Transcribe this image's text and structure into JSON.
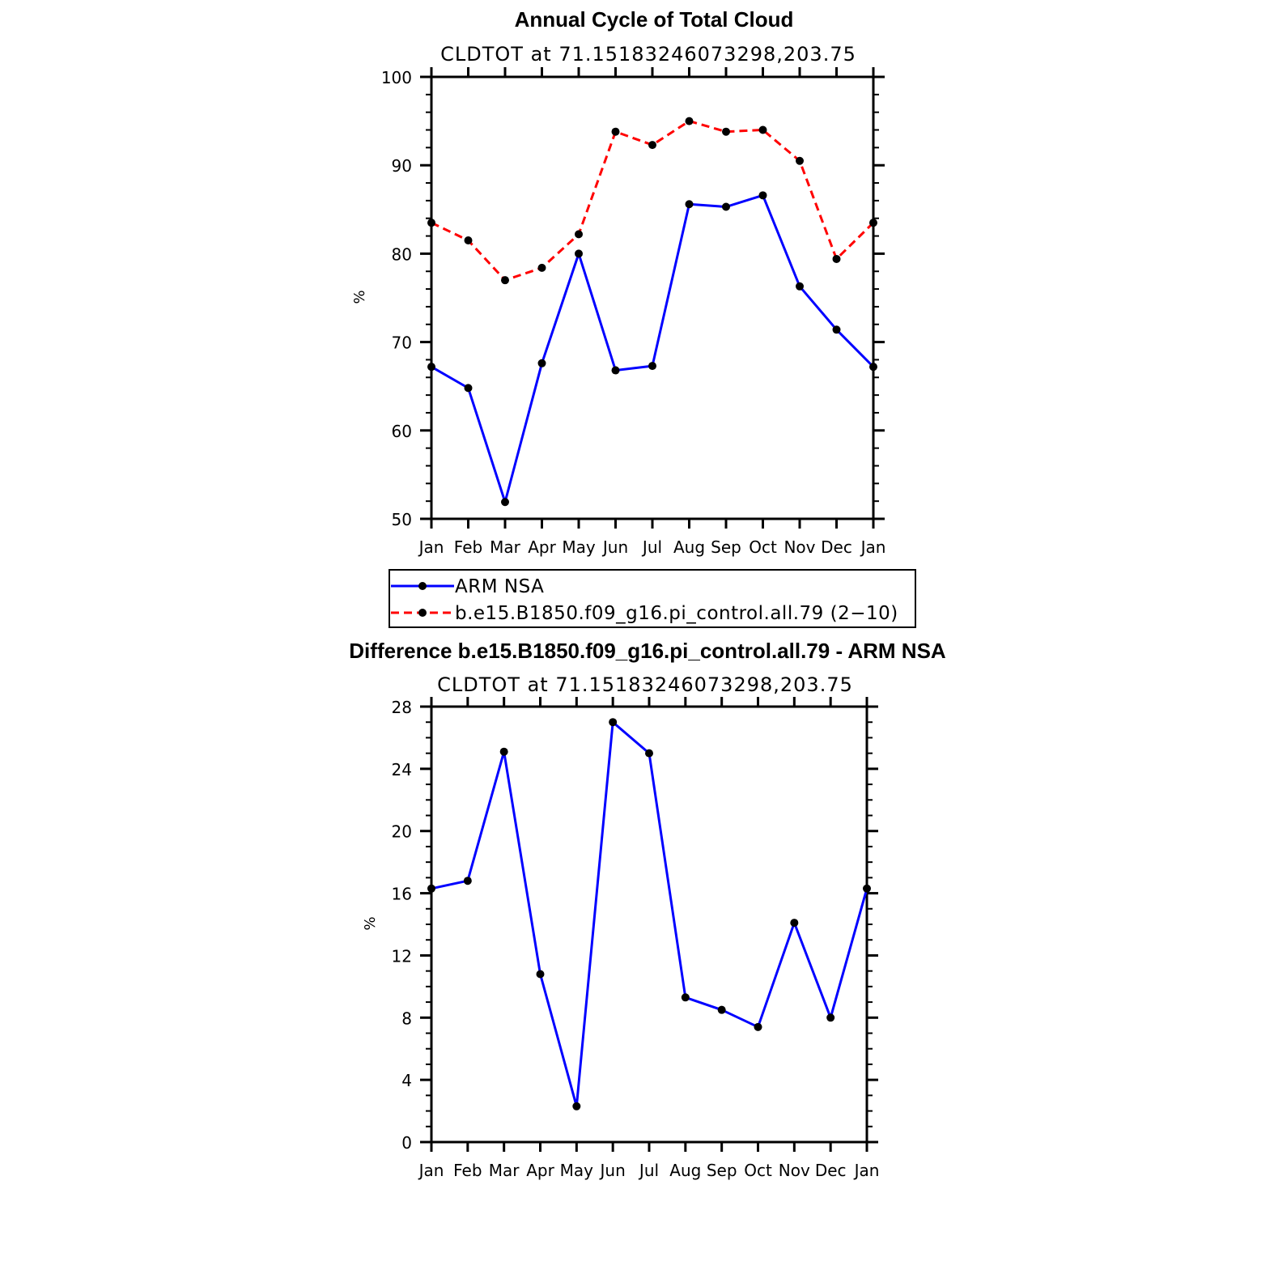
{
  "chart_data": [
    {
      "type": "line",
      "title": "Annual Cycle of Total Cloud",
      "subtitle": "CLDTOT at 71.15183246073298,203.75",
      "ylabel": "%",
      "xlabel": "",
      "categories": [
        "Jan",
        "Feb",
        "Mar",
        "Apr",
        "May",
        "Jun",
        "Jul",
        "Aug",
        "Sep",
        "Oct",
        "Nov",
        "Dec",
        "Jan"
      ],
      "ylim": [
        50,
        100
      ],
      "yticks": [
        50,
        60,
        70,
        80,
        90,
        100
      ],
      "ytick_labels": [
        "50",
        "60",
        "70",
        "80",
        "90",
        "100"
      ],
      "grid": false,
      "series": [
        {
          "name": "ARM NSA",
          "color": "#0000ff",
          "dash": "solid",
          "values": [
            67.2,
            64.8,
            51.9,
            67.6,
            80.0,
            66.8,
            67.3,
            85.6,
            85.3,
            86.6,
            76.3,
            71.4,
            67.2
          ]
        },
        {
          "name": "b.e15.B1850.f09_g16.pi_control.all.79 (2−10)",
          "color": "#ff0000",
          "dash": "dashed",
          "values": [
            83.5,
            81.5,
            77.0,
            78.4,
            82.2,
            93.8,
            92.3,
            95.0,
            93.8,
            94.0,
            90.5,
            79.4,
            83.5
          ]
        }
      ],
      "legend": "below"
    },
    {
      "type": "line",
      "title": "Difference b.e15.B1850.f09_g16.pi_control.all.79 - ARM NSA",
      "subtitle": "CLDTOT at 71.15183246073298,203.75",
      "ylabel": "%",
      "xlabel": "",
      "categories": [
        "Jan",
        "Feb",
        "Mar",
        "Apr",
        "May",
        "Jun",
        "Jul",
        "Aug",
        "Sep",
        "Oct",
        "Nov",
        "Dec",
        "Jan"
      ],
      "ylim": [
        0,
        28
      ],
      "yticks": [
        0,
        4,
        8,
        12,
        16,
        20,
        24,
        28
      ],
      "ytick_labels": [
        "0",
        "4",
        "8",
        "12",
        "16",
        "20",
        "24",
        "28"
      ],
      "grid": false,
      "series": [
        {
          "color": "#0000ff",
          "dash": "solid",
          "values": [
            16.3,
            16.8,
            25.1,
            10.8,
            2.3,
            27.0,
            25.0,
            9.3,
            8.5,
            7.4,
            14.1,
            8.0,
            16.3
          ]
        }
      ]
    }
  ]
}
